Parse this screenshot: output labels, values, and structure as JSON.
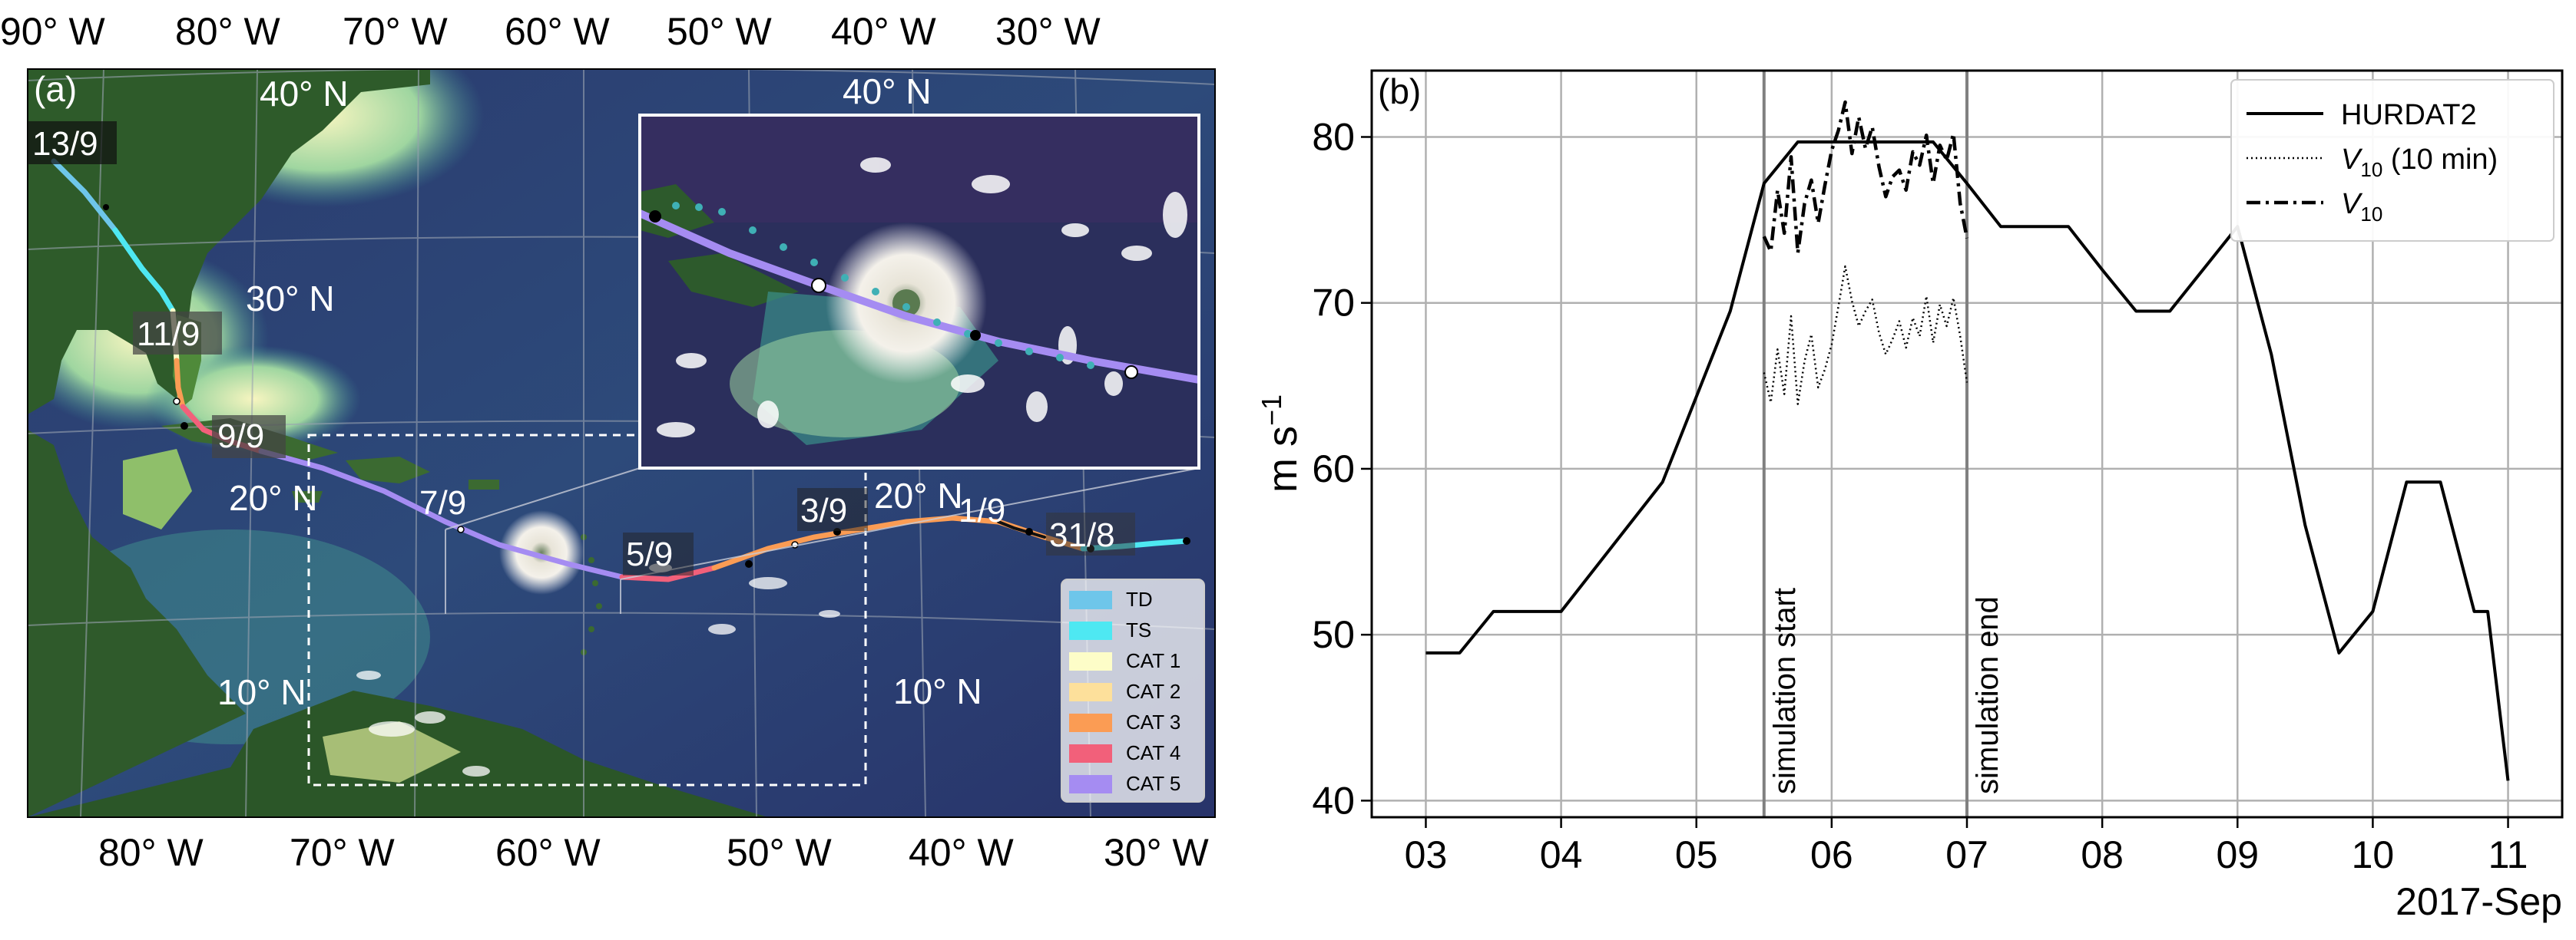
{
  "panel_a": {
    "label": "(a)",
    "lon_labels_top": [
      "90° W",
      "80° W",
      "70° W",
      "60° W",
      "50° W",
      "40° W",
      "30° W"
    ],
    "lon_labels_bottom": [
      "80° W",
      "70° W",
      "60° W",
      "50° W",
      "40° W",
      "30° W"
    ],
    "lat_labels": [
      "40° N",
      "30° N",
      "20° N",
      "10° N"
    ],
    "inset": {
      "lat_label": "40° N"
    },
    "inset_lat_labels": [
      "20° N",
      "10° N"
    ],
    "date_labels": [
      "13/9",
      "11/9",
      "9/9",
      "7/9",
      "5/9",
      "3/9",
      "1/9",
      "31/8"
    ],
    "legend": [
      {
        "label": "TD",
        "color": "#6ec6ea"
      },
      {
        "label": "TS",
        "color": "#4ee8f2"
      },
      {
        "label": "CAT 1",
        "color": "#fdfdc8"
      },
      {
        "label": "CAT 2",
        "color": "#fde09b"
      },
      {
        "label": "CAT 3",
        "color": "#fb9c54"
      },
      {
        "label": "CAT 4",
        "color": "#f2607a"
      },
      {
        "label": "CAT 5",
        "color": "#a58cf2"
      }
    ]
  },
  "chart_data": {
    "type": "line",
    "panel_label": "(b)",
    "ylabel": "m s",
    "ylabel_sup": "−1",
    "ylim": [
      39,
      84
    ],
    "yticks": [
      "40",
      "50",
      "60",
      "70",
      "80"
    ],
    "xlim": [
      2.6,
      11.4
    ],
    "xticks": [
      "03",
      "04",
      "05",
      "06",
      "07",
      "08",
      "09",
      "10",
      "11"
    ],
    "xlabel_right": "2017-Sep",
    "vlines": [
      {
        "x": 5.5,
        "label": "simulation start"
      },
      {
        "x": 7.0,
        "label": "simulation end"
      }
    ],
    "legend": [
      {
        "name": "HURDAT2",
        "style": "solid",
        "main": "HURDAT2",
        "sub": "",
        "suffix": ""
      },
      {
        "name": "V10 (10 min)",
        "style": "dotted",
        "main": "V",
        "sub": "10",
        "suffix": " (10 min)"
      },
      {
        "name": "V10",
        "style": "dashdot",
        "main": "V",
        "sub": "10",
        "suffix": ""
      }
    ],
    "series": [
      {
        "name": "HURDAT2",
        "style": "solid",
        "x": [
          3.0,
          3.25,
          3.5,
          4.0,
          4.75,
          5.25,
          5.5,
          5.75,
          6.75,
          7.0,
          7.25,
          7.75,
          8.0,
          8.25,
          8.5,
          9.0,
          9.25,
          9.5,
          9.75,
          10.0,
          10.25,
          10.5,
          10.75,
          10.85,
          11.0
        ],
        "y": [
          48.9,
          48.9,
          51.4,
          51.4,
          59.2,
          69.5,
          77.2,
          79.7,
          79.7,
          77.2,
          74.6,
          74.6,
          72.0,
          69.5,
          69.5,
          74.6,
          66.9,
          56.6,
          48.9,
          51.4,
          59.2,
          59.2,
          51.4,
          51.4,
          41.2
        ]
      },
      {
        "name": "V10 (10 min)",
        "style": "dotted",
        "x": [
          5.5,
          5.55,
          5.6,
          5.65,
          5.7,
          5.75,
          5.8,
          5.85,
          5.9,
          5.95,
          6.0,
          6.05,
          6.1,
          6.15,
          6.2,
          6.25,
          6.3,
          6.35,
          6.4,
          6.45,
          6.5,
          6.55,
          6.6,
          6.65,
          6.7,
          6.75,
          6.8,
          6.85,
          6.9,
          6.95,
          7.0
        ],
        "y": [
          65.8,
          64.0,
          67.2,
          64.5,
          69.2,
          63.9,
          66.5,
          68.1,
          64.9,
          66.0,
          67.5,
          69.8,
          72.2,
          70.1,
          68.6,
          69.5,
          70.2,
          68.2,
          66.9,
          67.8,
          68.9,
          67.3,
          69.1,
          68.0,
          70.4,
          67.6,
          69.9,
          68.6,
          70.3,
          68.0,
          65.2
        ]
      },
      {
        "name": "V10",
        "style": "dashdot",
        "x": [
          5.5,
          5.55,
          5.6,
          5.65,
          5.7,
          5.75,
          5.8,
          5.85,
          5.9,
          5.95,
          6.0,
          6.05,
          6.1,
          6.15,
          6.2,
          6.25,
          6.3,
          6.35,
          6.4,
          6.45,
          6.5,
          6.55,
          6.6,
          6.65,
          6.7,
          6.75,
          6.8,
          6.85,
          6.9,
          6.95,
          7.0
        ],
        "y": [
          74.0,
          73.1,
          76.8,
          74.2,
          78.8,
          73.0,
          76.0,
          77.4,
          74.8,
          77.1,
          79.2,
          80.4,
          82.1,
          79.0,
          81.2,
          79.3,
          80.6,
          78.2,
          76.4,
          77.6,
          78.0,
          76.8,
          79.1,
          78.3,
          80.1,
          77.2,
          79.5,
          78.6,
          80.2,
          76.0,
          73.9
        ]
      }
    ]
  }
}
